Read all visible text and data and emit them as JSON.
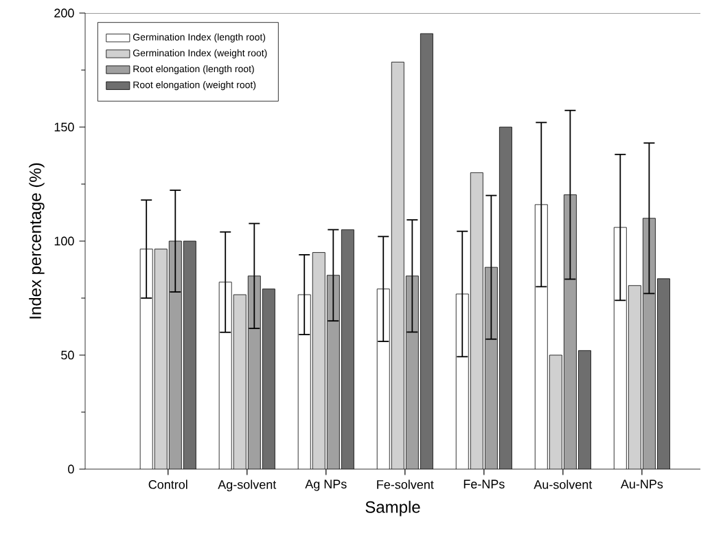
{
  "chart_data": {
    "type": "bar",
    "xlabel": "Sample",
    "ylabel": "Index percentage (%)",
    "categories": [
      "Control",
      "Ag-solvent",
      "Ag NPs",
      "Fe-solvent",
      "Fe-NPs",
      "Au-solvent",
      "Au-NPs"
    ],
    "series": [
      {
        "name": "Germination Index (length root)",
        "color": "#ffffff",
        "values": [
          96.5,
          82,
          76.5,
          79,
          76.8,
          116,
          106
        ],
        "errors": [
          21.5,
          22,
          17.5,
          23,
          27.5,
          36,
          32
        ]
      },
      {
        "name": "Germination Index (weight root)",
        "color": "#d0d0d0",
        "values": [
          96.5,
          76.5,
          95,
          178.5,
          130,
          50,
          80.5
        ]
      },
      {
        "name": "Root elongation (length root)",
        "color": "#a0a0a0",
        "values": [
          100,
          84.7,
          85,
          84.7,
          88.5,
          120.3,
          110
        ],
        "errors": [
          22.3,
          23,
          20,
          24.6,
          31.5,
          37,
          33
        ]
      },
      {
        "name": "Root elongation (weight root)",
        "color": "#6e6e6e",
        "values": [
          100,
          79,
          105,
          191,
          150,
          52,
          83.5
        ]
      }
    ],
    "ylim": [
      0,
      200
    ],
    "yticks": [
      0,
      50,
      100,
      150,
      200
    ],
    "grid": false,
    "legend": "top left"
  }
}
